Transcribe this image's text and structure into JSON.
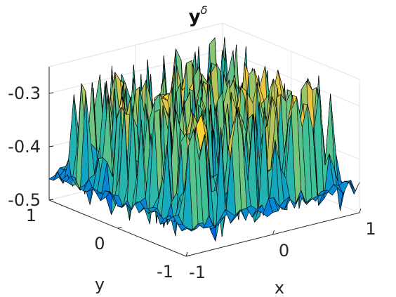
{
  "chart_data": {
    "type": "surface",
    "title_main": "y",
    "title_superscript": "δ",
    "xlabel": "x",
    "ylabel": "y",
    "xlim": [
      -1,
      1
    ],
    "ylim": [
      -1,
      1
    ],
    "zlim": [
      -0.5,
      -0.25
    ],
    "x_ticks": [
      "-1",
      "0",
      "1"
    ],
    "y_ticks": [
      "-1",
      "0",
      "1"
    ],
    "z_ticks": [
      "-0.5",
      "-0.4",
      "-0.3"
    ],
    "x_tick_values": [
      -1,
      0,
      1
    ],
    "y_tick_values": [
      -1,
      0,
      1
    ],
    "z_tick_values": [
      -0.5,
      -0.4,
      -0.3
    ],
    "grid": true,
    "colormap": "parula",
    "description_values": {
      "base_level": -0.45,
      "peak_level": -0.26,
      "trough_level": -0.5
    },
    "grid_size": 32
  }
}
